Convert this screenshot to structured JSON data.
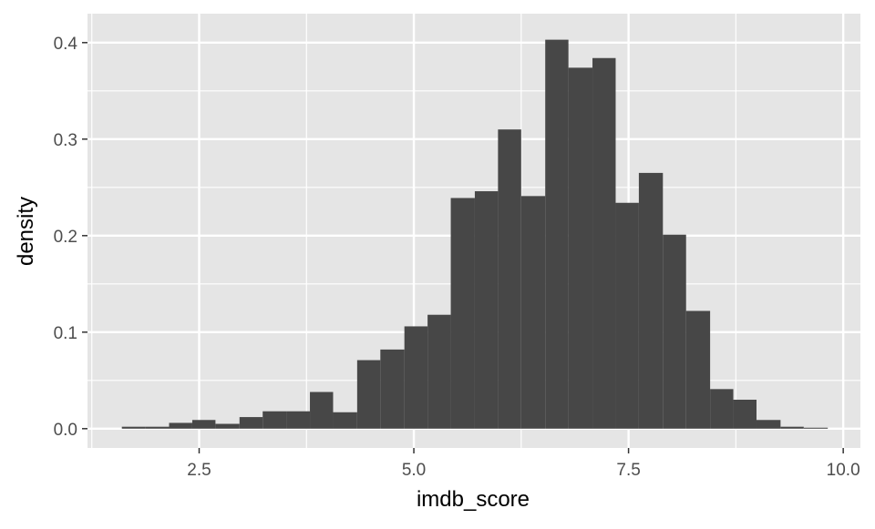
{
  "chart_data": {
    "type": "histogram",
    "title": "",
    "xlabel": "imdb_score",
    "ylabel": "density",
    "xlim": [
      1.2,
      10.2
    ],
    "ylim": [
      -0.02,
      0.43
    ],
    "x_ticks": [
      2.5,
      5.0,
      7.5,
      10.0
    ],
    "x_tick_labels": [
      "2.5",
      "5.0",
      "7.5",
      "10.0"
    ],
    "y_ticks": [
      0.0,
      0.1,
      0.2,
      0.3,
      0.4
    ],
    "y_tick_labels": [
      "0.0",
      "0.1",
      "0.2",
      "0.3",
      "0.4"
    ],
    "grid": true,
    "legend": "none",
    "bin_width": 0.2733,
    "bins": [
      {
        "x0": 1.6,
        "x1": 1.87,
        "density": 0.002
      },
      {
        "x0": 1.87,
        "x1": 2.15,
        "density": 0.002
      },
      {
        "x0": 2.15,
        "x1": 2.42,
        "density": 0.006
      },
      {
        "x0": 2.42,
        "x1": 2.69,
        "density": 0.009
      },
      {
        "x0": 2.69,
        "x1": 2.97,
        "density": 0.005
      },
      {
        "x0": 2.97,
        "x1": 3.24,
        "density": 0.012
      },
      {
        "x0": 3.24,
        "x1": 3.52,
        "density": 0.018
      },
      {
        "x0": 3.52,
        "x1": 3.79,
        "density": 0.018
      },
      {
        "x0": 3.79,
        "x1": 4.06,
        "density": 0.038
      },
      {
        "x0": 4.06,
        "x1": 4.34,
        "density": 0.017
      },
      {
        "x0": 4.34,
        "x1": 4.61,
        "density": 0.071
      },
      {
        "x0": 4.61,
        "x1": 4.89,
        "density": 0.082
      },
      {
        "x0": 4.89,
        "x1": 5.16,
        "density": 0.106
      },
      {
        "x0": 5.16,
        "x1": 5.43,
        "density": 0.118
      },
      {
        "x0": 5.43,
        "x1": 5.71,
        "density": 0.239
      },
      {
        "x0": 5.71,
        "x1": 5.98,
        "density": 0.246
      },
      {
        "x0": 5.98,
        "x1": 6.25,
        "density": 0.31
      },
      {
        "x0": 6.25,
        "x1": 6.53,
        "density": 0.241
      },
      {
        "x0": 6.53,
        "x1": 6.8,
        "density": 0.403
      },
      {
        "x0": 6.8,
        "x1": 7.08,
        "density": 0.374
      },
      {
        "x0": 7.08,
        "x1": 7.35,
        "density": 0.384
      },
      {
        "x0": 7.35,
        "x1": 7.62,
        "density": 0.234
      },
      {
        "x0": 7.62,
        "x1": 7.9,
        "density": 0.265
      },
      {
        "x0": 7.9,
        "x1": 8.17,
        "density": 0.201
      },
      {
        "x0": 8.17,
        "x1": 8.45,
        "density": 0.122
      },
      {
        "x0": 8.45,
        "x1": 8.72,
        "density": 0.041
      },
      {
        "x0": 8.72,
        "x1": 8.99,
        "density": 0.03
      },
      {
        "x0": 8.99,
        "x1": 9.27,
        "density": 0.009
      },
      {
        "x0": 9.27,
        "x1": 9.54,
        "density": 0.002
      },
      {
        "x0": 9.54,
        "x1": 9.82,
        "density": 0.001
      }
    ],
    "colors": {
      "panel_background": "#e5e5e5",
      "grid_major": "#ffffff",
      "bar_fill": "#474747",
      "tick_text": "#4d4d4d",
      "axis_title": "#000000"
    }
  }
}
